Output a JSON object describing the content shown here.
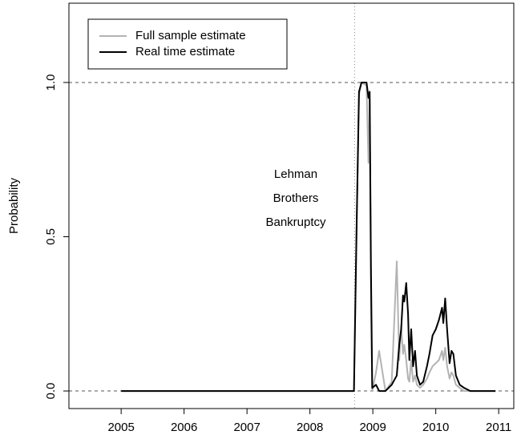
{
  "chart_data": {
    "type": "line",
    "ylabel": "Probability",
    "annotation": [
      "Lehman",
      "Brothers",
      "Bankruptcy"
    ],
    "vlines": [
      2008.71
    ],
    "hlines": [
      0,
      1
    ],
    "x": [
      2005.0,
      2008.7,
      2008.74,
      2008.78,
      2008.82,
      2008.9,
      2008.93,
      2008.95,
      2008.97,
      2008.99,
      2009.05,
      2009.1,
      2009.2,
      2009.3,
      2009.38,
      2009.42,
      2009.45,
      2009.48,
      2009.5,
      2009.53,
      2009.56,
      2009.58,
      2009.61,
      2009.64,
      2009.67,
      2009.7,
      2009.75,
      2009.8,
      2009.86,
      2009.9,
      2009.95,
      2010.0,
      2010.05,
      2010.1,
      2010.12,
      2010.15,
      2010.18,
      2010.22,
      2010.25,
      2010.28,
      2010.32,
      2010.38,
      2010.45,
      2010.55,
      2010.95
    ],
    "series": [
      {
        "name": "Full sample estimate",
        "color": "#b3b3b3",
        "values": [
          0,
          0,
          0.5,
          0.96,
          1.0,
          0.99,
          0.74,
          0.95,
          0.3,
          0.0,
          0.06,
          0.13,
          0.0,
          0.03,
          0.42,
          0.1,
          0.21,
          0.12,
          0.15,
          0.1,
          0.04,
          0.03,
          0.1,
          0.03,
          0.05,
          0.02,
          0.01,
          0.02,
          0.04,
          0.06,
          0.08,
          0.09,
          0.1,
          0.13,
          0.1,
          0.14,
          0.08,
          0.04,
          0.06,
          0.05,
          0.02,
          0.01,
          0.0,
          0.0,
          0.0
        ]
      },
      {
        "name": "Real time estimate",
        "color": "#000000",
        "values": [
          0,
          0,
          0.5,
          0.97,
          1.0,
          1.0,
          0.95,
          0.97,
          0.4,
          0.01,
          0.02,
          0.0,
          0.0,
          0.02,
          0.05,
          0.15,
          0.2,
          0.31,
          0.29,
          0.35,
          0.25,
          0.1,
          0.2,
          0.08,
          0.13,
          0.05,
          0.02,
          0.03,
          0.08,
          0.12,
          0.18,
          0.2,
          0.23,
          0.27,
          0.22,
          0.3,
          0.2,
          0.09,
          0.13,
          0.12,
          0.05,
          0.02,
          0.01,
          0.0,
          0.0
        ]
      }
    ],
    "xlim": [
      2004.17,
      2011.24
    ],
    "xticks": [
      2005,
      2006,
      2007,
      2008,
      2009,
      2010,
      2011
    ],
    "ylim": [
      -0.057,
      1.257
    ],
    "yticks": [
      {
        "value": 0,
        "label": "0.0"
      },
      {
        "value": 0.5,
        "label": "0.5"
      },
      {
        "value": 1,
        "label": "1.0"
      }
    ],
    "legend": "top-left"
  }
}
